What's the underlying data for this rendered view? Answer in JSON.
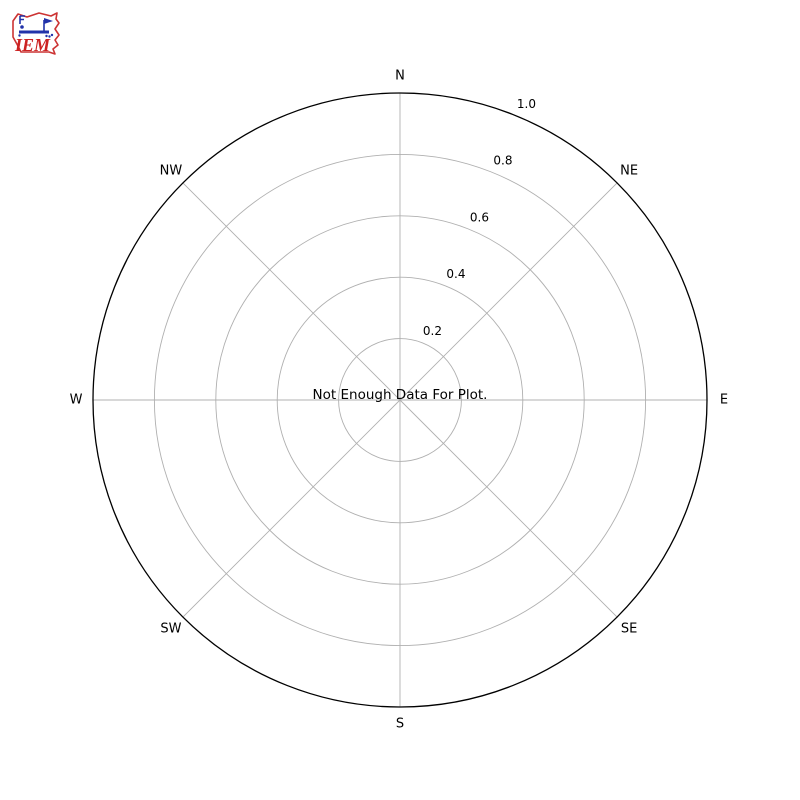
{
  "logo": {
    "text": "IEM",
    "name": "Iowa Environmental Mesonet",
    "outline_color": "#cc3333",
    "instrument_color": "#2233aa",
    "text_color": "#cc2222"
  },
  "chart_data": {
    "type": "windrose-polar",
    "title": "",
    "directions": [
      "N",
      "NE",
      "E",
      "SE",
      "S",
      "SW",
      "W",
      "NW"
    ],
    "radial_ticks": [
      0.2,
      0.4,
      0.6,
      0.8,
      1.0
    ],
    "radial_tick_labels": [
      "0.2",
      "0.4",
      "0.6",
      "0.8",
      "1.0"
    ],
    "rlim": [
      0,
      1.0
    ],
    "rlabel_angle_deg": 22.5,
    "series": [],
    "annotation": "Not Enough Data For Plot.",
    "grid": true,
    "grid_color": "#b0b0b0",
    "outline_color": "#000000",
    "text_color": "#000000",
    "background": "#ffffff"
  }
}
